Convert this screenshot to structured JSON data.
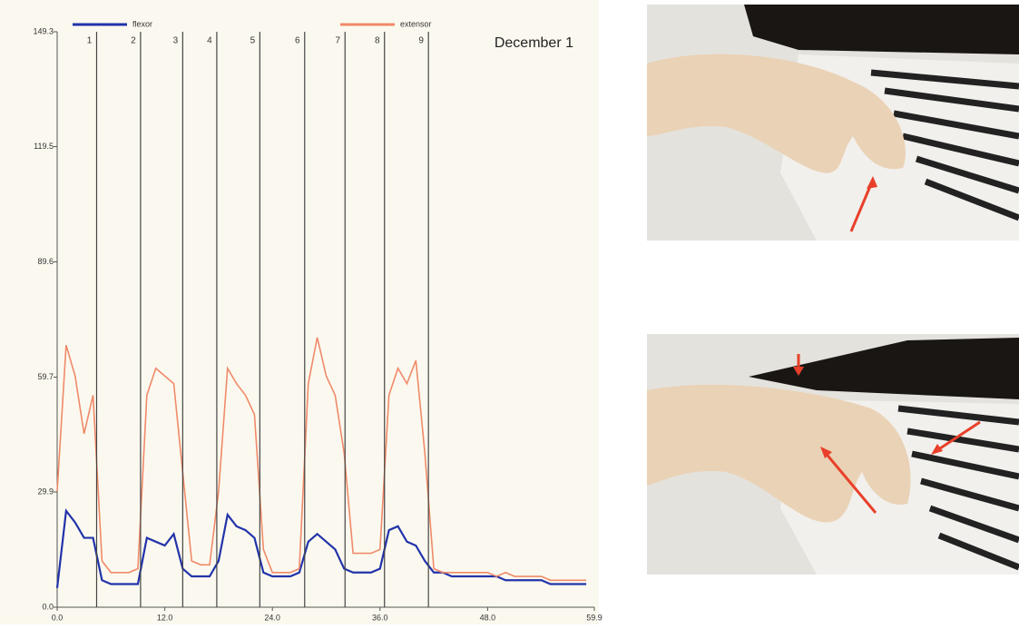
{
  "chart_data": {
    "type": "line",
    "title": "December 1",
    "x": [
      0,
      1,
      2,
      3,
      4,
      5,
      6,
      7,
      8,
      9,
      10,
      11,
      12,
      13,
      14,
      15,
      16,
      17,
      18,
      19,
      20,
      21,
      22,
      23,
      24,
      25,
      26,
      27,
      28,
      29,
      30,
      31,
      32,
      33,
      34,
      35,
      36,
      37,
      38,
      39,
      40,
      41,
      42,
      43,
      44,
      45,
      46,
      47,
      48,
      49,
      50,
      51,
      52,
      53,
      54,
      55,
      56,
      57,
      58,
      59
    ],
    "series": [
      {
        "name": "flexor",
        "color": "#2233aa",
        "values": [
          5,
          25,
          22,
          18,
          18,
          7,
          6,
          6,
          6,
          6,
          18,
          17,
          16,
          19,
          10,
          8,
          8,
          8,
          12,
          24,
          21,
          20,
          18,
          9,
          8,
          8,
          8,
          9,
          17,
          19,
          17,
          15,
          10,
          9,
          9,
          9,
          10,
          20,
          21,
          17,
          16,
          12,
          9,
          9,
          8,
          8,
          8,
          8,
          8,
          8,
          7,
          7,
          7,
          7,
          7,
          6,
          6,
          6,
          6,
          6
        ]
      },
      {
        "name": "extensor",
        "color": "#f08a6a",
        "values": [
          30,
          68,
          60,
          45,
          55,
          12,
          9,
          9,
          9,
          10,
          55,
          62,
          60,
          58,
          35,
          12,
          11,
          11,
          30,
          62,
          58,
          55,
          50,
          15,
          9,
          9,
          9,
          10,
          58,
          70,
          60,
          55,
          40,
          14,
          14,
          14,
          15,
          55,
          62,
          58,
          64,
          40,
          10,
          9,
          9,
          9,
          9,
          9,
          9,
          8,
          9,
          8,
          8,
          8,
          8,
          7,
          7,
          7,
          7,
          7
        ]
      }
    ],
    "markers": [
      {
        "x": 4.4,
        "label": "1"
      },
      {
        "x": 9.3,
        "label": "2"
      },
      {
        "x": 14.0,
        "label": "3"
      },
      {
        "x": 17.8,
        "label": "4"
      },
      {
        "x": 22.6,
        "label": "5"
      },
      {
        "x": 27.6,
        "label": "6"
      },
      {
        "x": 32.1,
        "label": "7"
      },
      {
        "x": 36.5,
        "label": "8"
      },
      {
        "x": 41.4,
        "label": "9"
      }
    ],
    "xlim": [
      0,
      59.9
    ],
    "ylim": [
      0,
      149.3
    ],
    "xticks": [
      {
        "value": 0,
        "label": "0.0"
      },
      {
        "value": 12,
        "label": "12.0"
      },
      {
        "value": 24,
        "label": "24.0"
      },
      {
        "value": 36,
        "label": "36.0"
      },
      {
        "value": 48,
        "label": "48.0"
      },
      59.9
    ],
    "yticks": [
      {
        "value": 0,
        "label": "0.0"
      },
      29.9,
      59.7,
      89.6,
      119.5,
      149.3
    ],
    "grid": false
  }
}
